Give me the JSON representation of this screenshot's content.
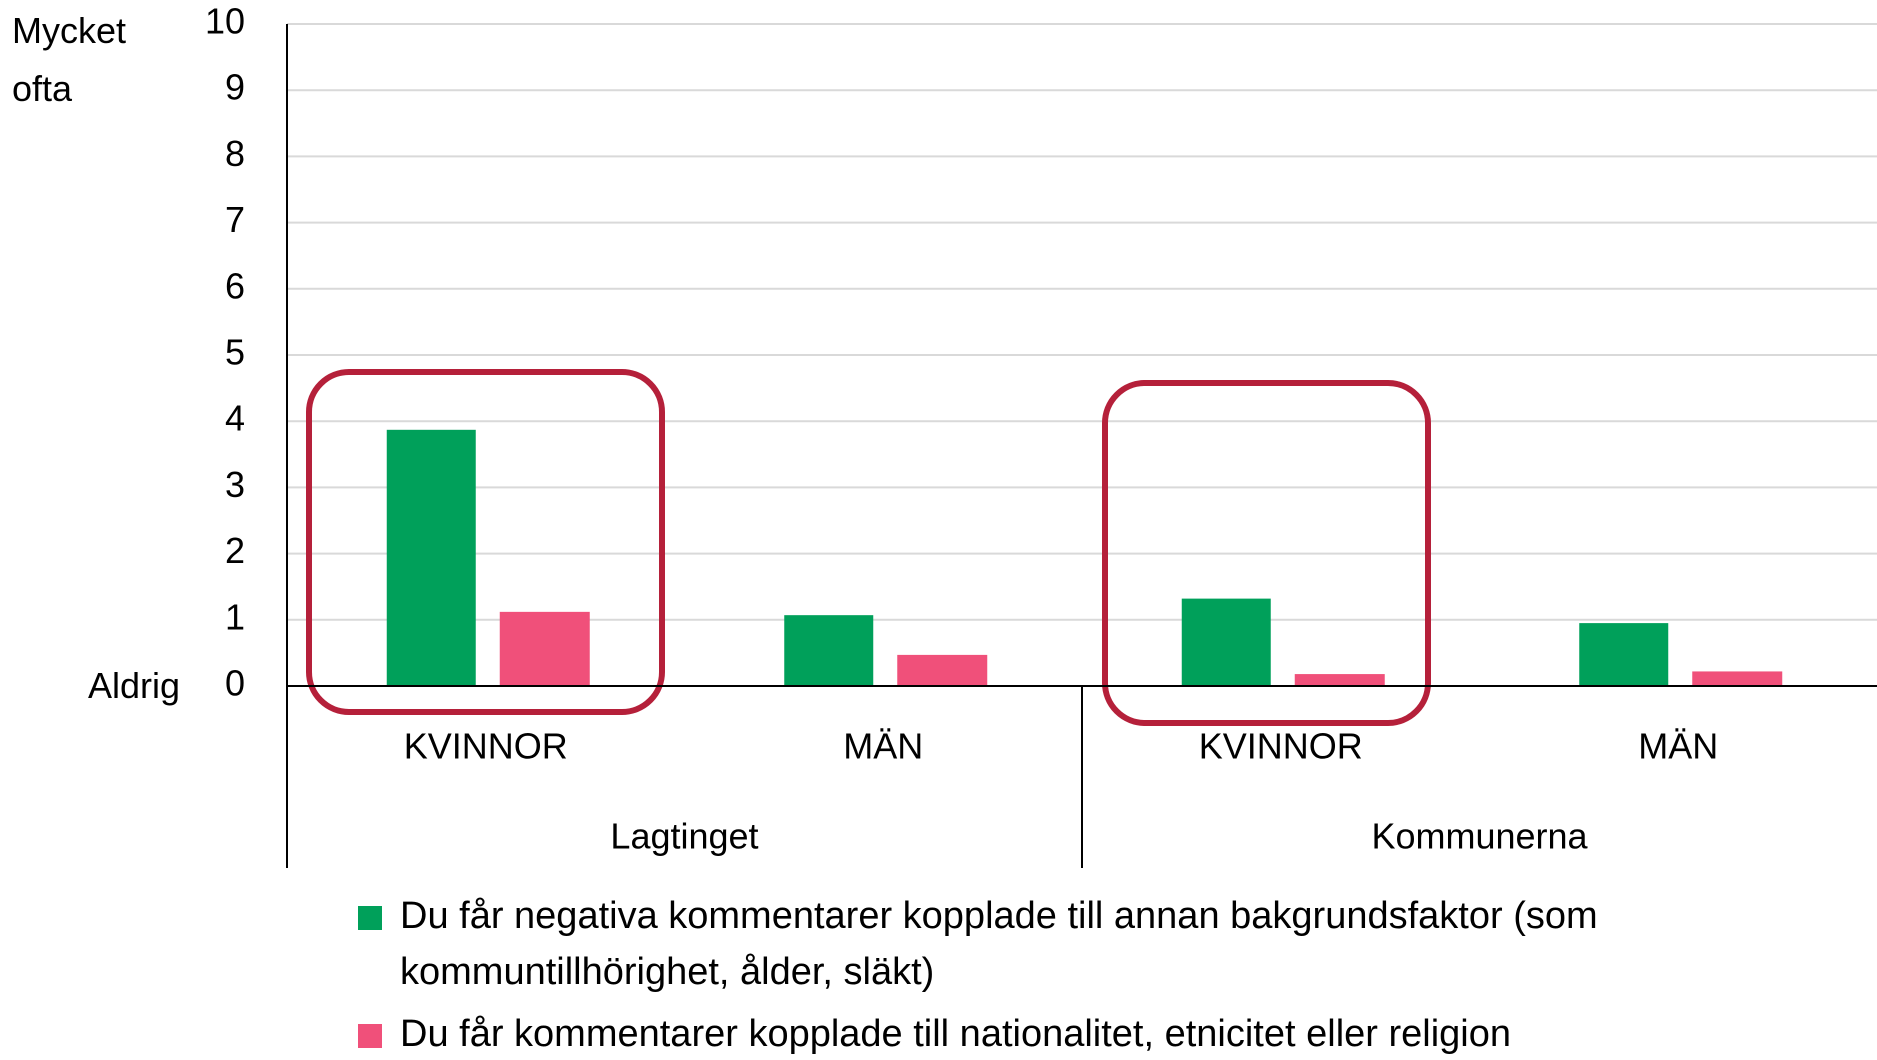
{
  "chart_data": {
    "type": "bar",
    "categories": [
      "KVINNOR",
      "MÄN",
      "KVINNOR",
      "MÄN"
    ],
    "groups": [
      {
        "name": "Lagtinget",
        "span": 2
      },
      {
        "name": "Kommunerna",
        "span": 2
      }
    ],
    "series": [
      {
        "name": "Du får negativa kommentarer kopplade till annan bakgrundsfaktor (som kommuntillhörighet, ålder, släkt)",
        "color": "#00a05a",
        "values": [
          3.87,
          1.07,
          1.32,
          0.95
        ]
      },
      {
        "name": "Du får kommentarer kopplade till nationalitet, etnicitet eller religion",
        "color": "#f0507a",
        "values": [
          1.12,
          0.47,
          0.18,
          0.22
        ]
      }
    ],
    "annotations": {
      "top": "Mycket ofta",
      "bottom": "Aldrig"
    },
    "ylim": [
      0,
      10
    ],
    "yticks": [
      0,
      1,
      2,
      3,
      4,
      5,
      6,
      7,
      8,
      9,
      10
    ],
    "grid": true
  }
}
